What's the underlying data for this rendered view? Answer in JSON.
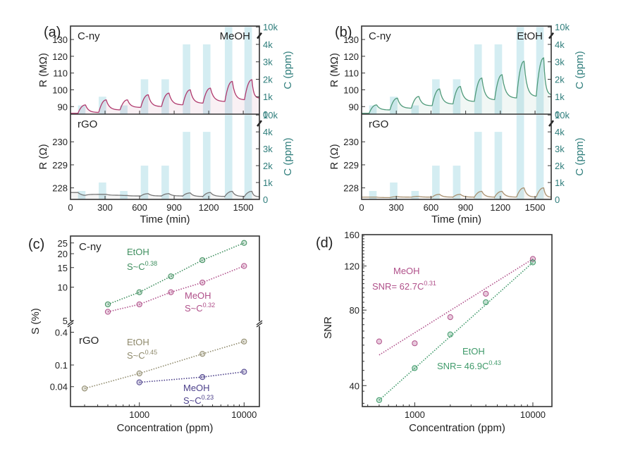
{
  "figure": {
    "panels": [
      "(a)",
      "(b)",
      "(c)",
      "(d)"
    ]
  },
  "chart_data": [
    {
      "id": "a",
      "type": "line",
      "panel_label": "(a)",
      "analyte": "MeOH",
      "xlabel": "Time (min)",
      "xlim": [
        0,
        1640
      ],
      "xticks": [
        0,
        300,
        600,
        900,
        1200,
        1500
      ],
      "exposures": {
        "start_times": [
          65,
          245,
          430,
          610,
          790,
          975,
          1150,
          1340,
          1510
        ],
        "duration": 65,
        "concentrations_ppm": [
          500,
          1000,
          500,
          2000,
          2000,
          4000,
          4000,
          10000,
          10000
        ]
      },
      "right_axis": {
        "label": "C (ppm)",
        "ticks": [
          "0",
          "1k",
          "2k",
          "3k",
          "4k",
          "10k"
        ],
        "color": "#2e7d7b"
      },
      "subplots": [
        {
          "material": "C-ny",
          "ylabel": "R (MΩ)",
          "ylim": [
            85.5,
            138
          ],
          "yticks": [
            90,
            100,
            110,
            120,
            130
          ],
          "color": "#b03a6e",
          "baseline": [
            86,
            86.5,
            88,
            89.5,
            90,
            91,
            92,
            93,
            94,
            95
          ],
          "peaks": [
            91,
            94,
            94,
            97,
            98,
            100,
            101,
            105,
            106
          ]
        },
        {
          "material": "rGO",
          "ylabel": "R (Ω)",
          "ylim": [
            227.5,
            231.2
          ],
          "yticks": [
            228,
            229,
            230
          ],
          "color": "#777777",
          "baseline": [
            227.8,
            227.72,
            227.68,
            227.65,
            227.65,
            227.65,
            227.63,
            227.63,
            227.63,
            227.62
          ],
          "peaks": [
            227.68,
            227.72,
            227.67,
            227.75,
            227.75,
            227.78,
            227.8,
            227.85,
            227.85
          ]
        }
      ]
    },
    {
      "id": "b",
      "type": "line",
      "panel_label": "(b)",
      "analyte": "EtOH",
      "xlabel": "Time (min)",
      "xlim": [
        0,
        1640
      ],
      "xticks": [
        0,
        300,
        600,
        900,
        1200,
        1500
      ],
      "exposures": {
        "start_times": [
          65,
          245,
          430,
          610,
          790,
          975,
          1150,
          1340,
          1510
        ],
        "duration": 65,
        "concentrations_ppm": [
          500,
          1000,
          500,
          2000,
          2000,
          4000,
          4000,
          10000,
          10000
        ]
      },
      "right_axis": {
        "label": "C (ppm)",
        "ticks": [
          "0",
          "1k",
          "2k",
          "3k",
          "4k",
          "10k"
        ],
        "color": "#2e7d7b"
      },
      "subplots": [
        {
          "material": "C-ny",
          "ylabel": "R (MΩ)",
          "ylim": [
            85.5,
            138
          ],
          "yticks": [
            90,
            100,
            110,
            120,
            130
          ],
          "color": "#4f9a7a",
          "baseline": [
            86,
            88,
            89,
            90.5,
            91.5,
            93,
            94,
            95,
            96,
            97
          ],
          "peaks": [
            91,
            95,
            96,
            100.5,
            102,
            107,
            109,
            117,
            119
          ]
        },
        {
          "material": "rGO",
          "ylabel": "R (Ω)",
          "ylim": [
            227.5,
            231.2
          ],
          "yticks": [
            228,
            229,
            230
          ],
          "color": "#a89070",
          "baseline": [
            227.6,
            227.58,
            227.6,
            227.6,
            227.6,
            227.6,
            227.6,
            227.6,
            227.6,
            227.6
          ],
          "peaks": [
            227.6,
            227.62,
            227.63,
            227.72,
            227.72,
            227.85,
            227.85,
            228.0,
            228.0
          ]
        }
      ]
    },
    {
      "id": "c",
      "type": "scatter",
      "panel_label": "(c)",
      "xlabel": "Concentration (ppm)",
      "ylabel": "S (%)",
      "xscale": "log",
      "xlim": [
        220,
        14000
      ],
      "xticks": [
        "1000",
        "10000"
      ],
      "subplots": [
        {
          "material": "C-ny",
          "yscale": "log",
          "ylim": [
            5,
            28
          ],
          "yticks": [
            "5",
            "10",
            "15",
            "20",
            "25"
          ],
          "series": [
            {
              "name": "EtOH",
              "fit": "S~C",
              "exponent": "0.38",
              "color": "#3f8f5f",
              "x": [
                500,
                1000,
                2000,
                4000,
                10000
              ],
              "y": [
                7,
                9,
                12.5,
                17.5,
                25
              ]
            },
            {
              "name": "MeOH",
              "fit": "S~C",
              "exponent": "0.32",
              "color": "#b0508a",
              "x": [
                500,
                1000,
                2000,
                4000,
                10000
              ],
              "y": [
                6,
                7,
                9,
                11,
                15.5
              ]
            }
          ]
        },
        {
          "material": "rGO",
          "yscale": "log",
          "ylim": [
            0.02,
            0.5
          ],
          "yticks": [
            "0.04",
            "0.1",
            "0.4"
          ],
          "series": [
            {
              "name": "EtOH",
              "fit": "S~C",
              "exponent": "0.45",
              "color": "#8f8a6c",
              "x": [
                300,
                1000,
                4000,
                10000
              ],
              "y": [
                0.037,
                0.07,
                0.16,
                0.27
              ]
            },
            {
              "name": "MeOH",
              "fit": "S~C",
              "exponent": "0.23",
              "color": "#4b3f8a",
              "x": [
                1000,
                4000,
                10000
              ],
              "y": [
                0.048,
                0.06,
                0.075
              ]
            }
          ]
        }
      ]
    },
    {
      "id": "d",
      "type": "scatter",
      "panel_label": "(d)",
      "xlabel": "Concentration (ppm)",
      "ylabel": "SNR",
      "xscale": "log",
      "yscale": "log",
      "xlim": [
        360,
        14500
      ],
      "ylim": [
        33,
        160
      ],
      "xticks": [
        "1000",
        "10000"
      ],
      "yticks": [
        "40",
        "80",
        "120",
        "160"
      ],
      "series": [
        {
          "name": "MeOH",
          "fit_label": "SNR= 62.7C",
          "exponent": "0.31",
          "color": "#b0508a",
          "x": [
            500,
            1000,
            2000,
            4000,
            10000
          ],
          "y": [
            60,
            59,
            75,
            93,
            128
          ],
          "fit_range": [
            500,
            10000
          ],
          "fit_y": [
            53,
            128
          ]
        },
        {
          "name": "EtOH",
          "fit_label": "SNR= 46.9C",
          "exponent": "0.43",
          "color": "#3f9a6a",
          "x": [
            500,
            1000,
            2000,
            4000,
            10000
          ],
          "y": [
            35,
            47,
            64,
            86,
            124
          ],
          "fit_range": [
            500,
            10000
          ],
          "fit_y": [
            35,
            124
          ]
        }
      ]
    }
  ]
}
